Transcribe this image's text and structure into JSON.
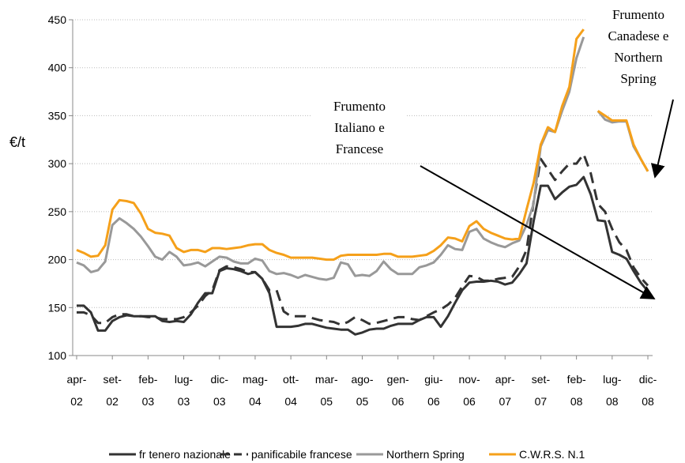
{
  "chart_data": {
    "type": "line",
    "ylabel": "€/t",
    "ylim": [
      100,
      450
    ],
    "yticks": [
      100,
      150,
      200,
      250,
      300,
      350,
      400,
      450
    ],
    "grid": true,
    "legend": "bottom",
    "categories": [
      "apr-02",
      null,
      null,
      null,
      null,
      "set-02",
      null,
      null,
      null,
      null,
      "feb-03",
      null,
      null,
      null,
      null,
      "lug-03",
      null,
      null,
      null,
      null,
      "dic-03",
      null,
      null,
      null,
      null,
      "mag-04",
      null,
      null,
      null,
      null,
      "ott-04",
      null,
      null,
      null,
      null,
      "mar-05",
      null,
      null,
      null,
      null,
      "ago-05",
      null,
      null,
      null,
      null,
      "gen-06",
      null,
      null,
      null,
      null,
      "giu-06",
      null,
      null,
      null,
      null,
      "nov-06",
      null,
      null,
      null,
      null,
      "apr-07",
      null,
      null,
      null,
      null,
      "set-07",
      null,
      null,
      null,
      null,
      "feb-08",
      null,
      null,
      null,
      null,
      "lug-08",
      null,
      null,
      null,
      null,
      "dic-08"
    ],
    "series": [
      {
        "name": "fr tenero nazionale",
        "color": "#333333",
        "style": "solid",
        "values": [
          152,
          152,
          145,
          126,
          126,
          136,
          140,
          142,
          141,
          141,
          141,
          141,
          136,
          135,
          136,
          135,
          143,
          155,
          165,
          165,
          188,
          191,
          190,
          188,
          185,
          187,
          180,
          165,
          130,
          130,
          130,
          131,
          133,
          133,
          131,
          129,
          128,
          127,
          127,
          122,
          124,
          127,
          128,
          128,
          131,
          133,
          133,
          133,
          137,
          140,
          140,
          130,
          141,
          155,
          168,
          176,
          177,
          177,
          178,
          177,
          174,
          176,
          185,
          196,
          240,
          277,
          277,
          263,
          270,
          276,
          278,
          286,
          268,
          241,
          240,
          208,
          205,
          201,
          188,
          176,
          167
        ]
      },
      {
        "name": "panificabile francese",
        "color": "#333333",
        "style": "dashed",
        "values": [
          145,
          145,
          142,
          134,
          134,
          140,
          143,
          143,
          141,
          141,
          140,
          140,
          138,
          138,
          138,
          140,
          145,
          152,
          162,
          168,
          189,
          193,
          192,
          190,
          187,
          187,
          180,
          168,
          168,
          146,
          141,
          141,
          141,
          139,
          137,
          136,
          135,
          132,
          135,
          140,
          137,
          133,
          134,
          136,
          138,
          140,
          140,
          138,
          137,
          141,
          145,
          148,
          153,
          160,
          172,
          183,
          182,
          178,
          178,
          180,
          181,
          182,
          193,
          210,
          260,
          305,
          294,
          283,
          292,
          300,
          300,
          310,
          290,
          258,
          250,
          232,
          218,
          210,
          192,
          181,
          173
        ]
      },
      {
        "name": "Northern Spring",
        "color": "#999999",
        "style": "solid",
        "values": [
          197,
          194,
          187,
          189,
          198,
          236,
          243,
          238,
          232,
          224,
          214,
          203,
          200,
          208,
          203,
          194,
          195,
          197,
          193,
          198,
          203,
          202,
          198,
          196,
          196,
          201,
          199,
          188,
          185,
          186,
          184,
          181,
          184,
          182,
          180,
          179,
          181,
          197,
          195,
          183,
          184,
          183,
          188,
          198,
          190,
          185,
          185,
          185,
          192,
          194,
          197,
          205,
          215,
          211,
          210,
          229,
          232,
          222,
          218,
          215,
          213,
          217,
          220,
          236,
          258,
          318,
          335,
          333,
          355,
          375,
          410,
          432,
          null,
          355,
          346,
          343,
          344,
          344,
          318,
          305,
          292
        ]
      },
      {
        "name": "C.W.R.S. N.1",
        "color": "#f5a01a",
        "style": "solid",
        "values": [
          210,
          207,
          203,
          204,
          215,
          252,
          262,
          261,
          259,
          248,
          232,
          228,
          227,
          225,
          212,
          208,
          210,
          210,
          208,
          212,
          212,
          211,
          212,
          213,
          215,
          216,
          216,
          210,
          207,
          205,
          202,
          202,
          202,
          202,
          201,
          200,
          200,
          204,
          205,
          205,
          205,
          205,
          205,
          206,
          206,
          203,
          203,
          203,
          204,
          205,
          209,
          215,
          223,
          222,
          219,
          235,
          240,
          232,
          228,
          225,
          222,
          221,
          222,
          252,
          280,
          320,
          338,
          333,
          360,
          380,
          430,
          440,
          null,
          355,
          350,
          345,
          345,
          345,
          320,
          305,
          292
        ]
      }
    ],
    "annotations": [
      "Frumento\nItaliano e\nFrancese",
      "Frumento\nCanadese e\nNorthern\nSpring"
    ]
  }
}
